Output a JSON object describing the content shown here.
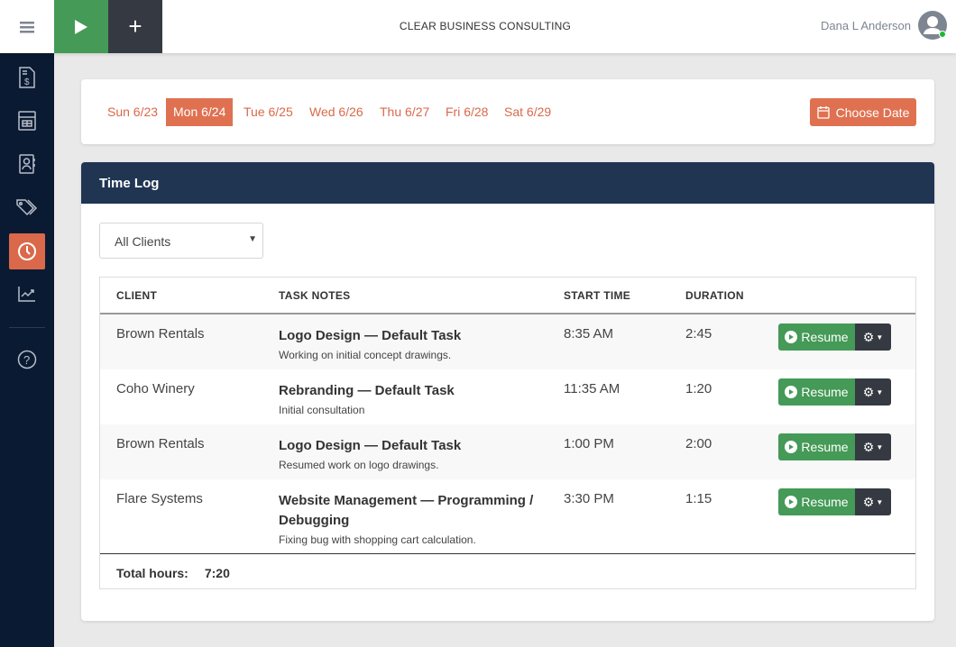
{
  "header": {
    "brand": "CLEAR BUSINESS CONSULTING",
    "user": "Dana L Anderson",
    "status_color": "#1bb934"
  },
  "sidebar": {
    "items": [
      {
        "icon": "invoice-icon"
      },
      {
        "icon": "calculator-icon"
      },
      {
        "icon": "contacts-icon"
      },
      {
        "icon": "tags-icon"
      },
      {
        "icon": "clock-icon",
        "active": true
      },
      {
        "icon": "chart-icon"
      },
      {
        "icon": "help-icon"
      }
    ]
  },
  "dates": {
    "days": [
      "Sun 6/23",
      "Mon 6/24",
      "Tue 6/25",
      "Wed 6/26",
      "Thu 6/27",
      "Fri 6/28",
      "Sat 6/29"
    ],
    "selected": "Mon 6/24",
    "choose_label": "Choose Date"
  },
  "timelog": {
    "title": "Time Log",
    "filter": "All Clients",
    "columns": [
      "CLIENT",
      "TASK NOTES",
      "START TIME",
      "DURATION"
    ],
    "rows": [
      {
        "client": "Brown Rentals",
        "task": "Logo Design — Default Task",
        "note": "Working on initial concept drawings.",
        "start": "8:35 AM",
        "duration": "2:45"
      },
      {
        "client": "Coho Winery",
        "task": "Rebranding — Default Task",
        "note": "Initial consultation",
        "start": "11:35 AM",
        "duration": "1:20"
      },
      {
        "client": "Brown Rentals",
        "task": "Logo Design — Default Task",
        "note": "Resumed work on logo drawings.",
        "start": "1:00 PM",
        "duration": "2:00"
      },
      {
        "client": "Flare Systems",
        "task": "Website Management — Programming / Debugging",
        "note": "Fixing bug with shopping cart calculation.",
        "start": "3:30 PM",
        "duration": "1:15"
      }
    ],
    "resume_label": "Resume",
    "total_label": "Total hours:",
    "total": "7:20"
  },
  "colors": {
    "accent": "#df7151",
    "green": "#449a56",
    "navy": "#0b1a33",
    "header": "#1f3552"
  }
}
